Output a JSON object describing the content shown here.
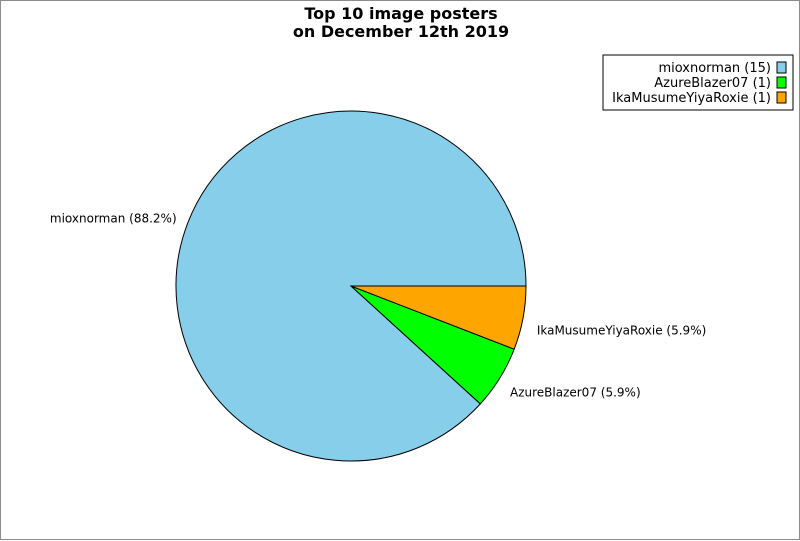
{
  "chart_data": {
    "type": "pie",
    "title_lines": [
      "Top 10 image posters",
      "on December 12th 2019"
    ],
    "slices": [
      {
        "name": "mioxnorman",
        "value": 15,
        "percent_label": "mioxnorman (88.2%)",
        "legend_label": "mioxnorman (15)",
        "color": "#87ceeb"
      },
      {
        "name": "AzureBlazer07",
        "value": 1,
        "percent_label": "AzureBlazer07 (5.9%)",
        "legend_label": "AzureBlazer07 (1)",
        "color": "#00ff00"
      },
      {
        "name": "IkaMusumeYiyaRoxie",
        "value": 1,
        "percent_label": "IkaMusumeYiyaRoxie (5.9%)",
        "legend_label": "IkaMusumeYiyaRoxie (1)",
        "color": "#ffa500"
      }
    ],
    "legend_position": "top-right"
  }
}
